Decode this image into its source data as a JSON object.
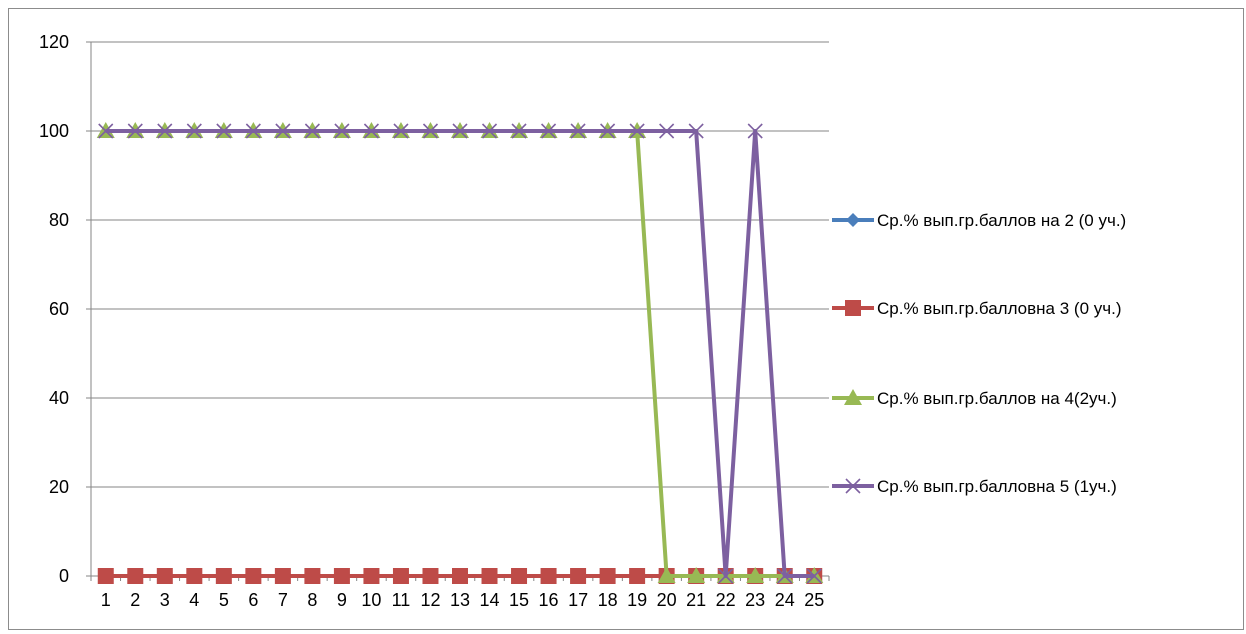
{
  "chart_data": {
    "type": "line",
    "title": "",
    "xlabel": "",
    "ylabel": "",
    "ylim": [
      0,
      120
    ],
    "yticks": [
      0,
      20,
      40,
      60,
      80,
      100,
      120
    ],
    "categories": [
      "1",
      "2",
      "3",
      "4",
      "5",
      "6",
      "7",
      "8",
      "9",
      "10",
      "11",
      "12",
      "13",
      "14",
      "15",
      "16",
      "17",
      "18",
      "19",
      "20",
      "21",
      "22",
      "23",
      "24",
      "25"
    ],
    "grid": "horizontal",
    "legend_position": "right",
    "series": [
      {
        "name": "Ср.% вып.гр.баллов на 2 (0 уч.)",
        "color": "#4a7ebb",
        "marker": "diamond",
        "values": [
          0,
          0,
          0,
          0,
          0,
          0,
          0,
          0,
          0,
          0,
          0,
          0,
          0,
          0,
          0,
          0,
          0,
          0,
          0,
          0,
          0,
          0,
          0,
          0,
          0
        ]
      },
      {
        "name": "Ср.% вып.гр.балловна 3 (0 уч.)",
        "color": "#be4b48",
        "marker": "square",
        "values": [
          0,
          0,
          0,
          0,
          0,
          0,
          0,
          0,
          0,
          0,
          0,
          0,
          0,
          0,
          0,
          0,
          0,
          0,
          0,
          0,
          0,
          0,
          0,
          0,
          0
        ]
      },
      {
        "name": "Ср.% вып.гр.баллов на 4(2уч.)",
        "color": "#98b954",
        "marker": "triangle",
        "values": [
          100,
          100,
          100,
          100,
          100,
          100,
          100,
          100,
          100,
          100,
          100,
          100,
          100,
          100,
          100,
          100,
          100,
          100,
          100,
          0,
          0,
          0,
          0,
          0,
          0
        ]
      },
      {
        "name": "Ср.% вып.гр.балловна 5 (1уч.)",
        "color": "#7d60a0",
        "marker": "x",
        "values": [
          100,
          100,
          100,
          100,
          100,
          100,
          100,
          100,
          100,
          100,
          100,
          100,
          100,
          100,
          100,
          100,
          100,
          100,
          100,
          100,
          100,
          0,
          100,
          0,
          0
        ]
      }
    ]
  }
}
